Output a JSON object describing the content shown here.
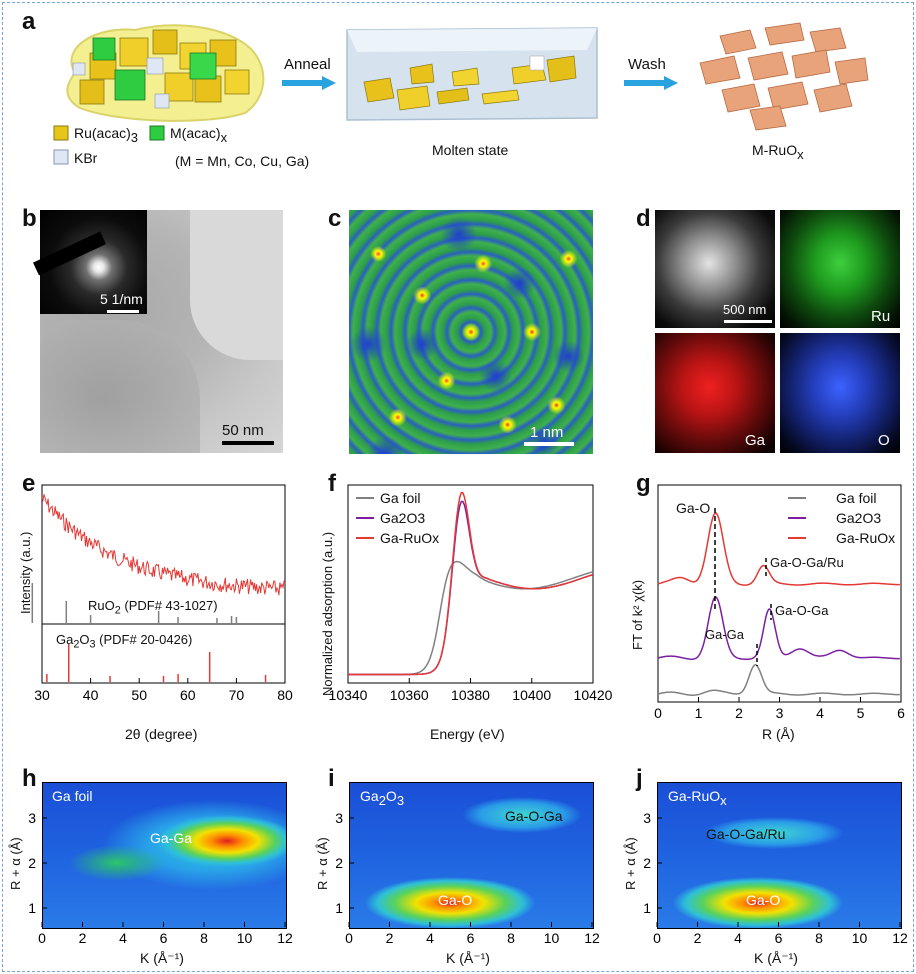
{
  "colors": {
    "ga_foil": "#808080",
    "ga2o3": "#7b1fa2",
    "ga_ruox": "#e53935",
    "arrow": "#29a3e0",
    "ru": "#e6c619",
    "m": "#2ecc40",
    "kbr": "#c8d2e8"
  },
  "panel_a": {
    "label": "a",
    "anneal": "Anneal",
    "wash": "Wash",
    "legend_ru": "Ru(acac)",
    "legend_ru_sub": "3",
    "legend_m": "M(acac)",
    "legend_m_sub": "x",
    "legend_kbr": "KBr",
    "legend_mlist": "(M = Mn, Co, Cu, Ga)",
    "caption_molten": "Molten state",
    "caption_product": "M-RuO",
    "caption_product_sub": "x"
  },
  "panel_b": {
    "label": "b",
    "scale_inset": "5 1/nm",
    "scale_main": "50 nm"
  },
  "panel_c": {
    "label": "c",
    "scale": "1 nm"
  },
  "panel_d": {
    "label": "d",
    "scale": "500 nm",
    "ru": "Ru",
    "ga": "Ga",
    "o": "O"
  },
  "panel_e": {
    "label": "e",
    "ylabel": "Intensity (a.u.)",
    "xlabel": "2θ (degree)",
    "ticks": [
      "30",
      "40",
      "50",
      "60",
      "70",
      "80"
    ],
    "ref1_main": "RuO",
    "ref1_sub": "2",
    "ref1_rest": " (PDF# 43-1027)",
    "ref2_main": "Ga",
    "ref2_sub1": "2",
    "ref2_mid": "O",
    "ref2_sub2": "3",
    "ref2_rest": " (PDF# 20-0426)"
  },
  "panel_f": {
    "label": "f",
    "ylabel": "Normalized adsorption (a.u.)",
    "xlabel": "Energy (eV)",
    "ticks": [
      "10340",
      "10360",
      "10380",
      "10400",
      "10420"
    ],
    "legend": [
      "Ga foil",
      "Ga2O3",
      "Ga-RuOx"
    ]
  },
  "panel_g": {
    "label": "g",
    "ylabel": "FT of k² χ(k)",
    "xlabel": "R (Å)",
    "ticks": [
      "0",
      "1",
      "2",
      "3",
      "4",
      "5",
      "6"
    ],
    "legend": [
      "Ga foil",
      "Ga2O3",
      "Ga-RuOx"
    ],
    "ann_gao": "Ga-O",
    "ann_gaogaru": "Ga-O-Ga/Ru",
    "ann_gaoga": "Ga-O-Ga",
    "ann_gaga": "Ga-Ga"
  },
  "panel_h": {
    "label": "h",
    "title": "Ga foil",
    "peak": "Ga-Ga"
  },
  "panel_i": {
    "label": "i",
    "title_main": "Ga",
    "title_sub1": "2",
    "title_mid": "O",
    "title_sub2": "3",
    "peak": "Ga-O",
    "peak2": "Ga-O-Ga"
  },
  "panel_j": {
    "label": "j",
    "title_main": "Ga-RuO",
    "title_sub": "x",
    "peak": "Ga-O",
    "peak2": "Ga-O-Ga/Ru"
  },
  "wt_axes": {
    "ylabel": "R + α (Å)",
    "xlabel": "K (Å⁻¹)",
    "xticks": [
      "0",
      "2",
      "4",
      "6",
      "8",
      "10",
      "12"
    ],
    "yticks": [
      "1",
      "2",
      "3"
    ]
  }
}
